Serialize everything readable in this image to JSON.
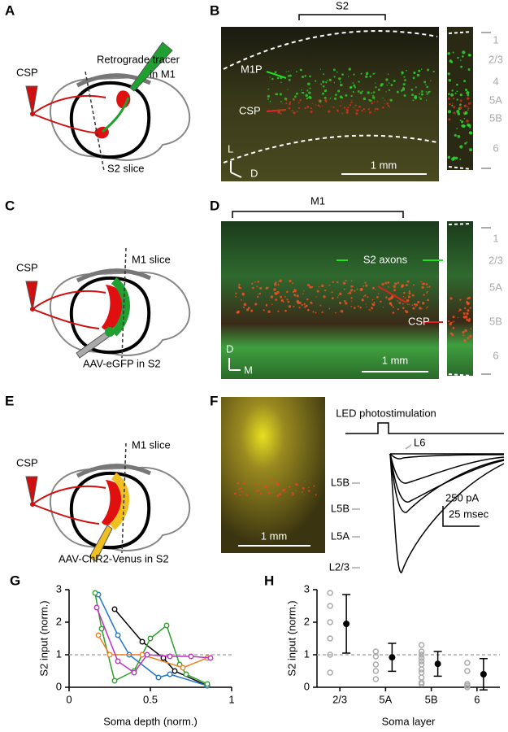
{
  "panels": {
    "A": {
      "letter": "A",
      "csp": "CSP",
      "tracer": [
        "Retrograde tracer",
        "in M1"
      ],
      "slice": "S2 slice"
    },
    "B": {
      "letter": "B",
      "region": "S2",
      "m1p": "M1P",
      "csp": "CSP",
      "axes": [
        "L",
        "D"
      ],
      "scale": "1 mm",
      "layers": [
        "1",
        "2/3",
        "4",
        "5A",
        "5B",
        "6"
      ]
    },
    "C": {
      "letter": "C",
      "slice": "M1 slice",
      "csp": "CSP",
      "injection": "AAV-eGFP in S2"
    },
    "D": {
      "letter": "D",
      "region": "M1",
      "axons": "S2 axons",
      "csp": "CSP",
      "axes": [
        "D",
        "M"
      ],
      "scale": "1 mm",
      "layers": [
        "1",
        "2/3",
        "5A",
        "5B",
        "6"
      ]
    },
    "E": {
      "letter": "E",
      "slice": "M1 slice",
      "csp": "CSP",
      "injection": "AAV-ChR2-Venus in S2"
    },
    "F": {
      "letter": "F",
      "scale": "1 mm",
      "stimulus": "LED photostimulation",
      "traces": [
        "L6",
        "L5B",
        "L5B",
        "L5A",
        "L2/3"
      ],
      "scalebar": [
        "250 pA",
        "25 msec"
      ]
    }
  },
  "chart_data": [
    {
      "panel": "G",
      "type": "line",
      "xlabel": "Soma depth (norm.)",
      "ylabel": "S2 input (norm.)",
      "xlim": [
        0,
        1
      ],
      "ylim": [
        0,
        3
      ],
      "xticks": [
        0,
        0.5,
        1
      ],
      "yticks": [
        0,
        1,
        2,
        3
      ],
      "reference_line": 1,
      "series": [
        {
          "color": "#000000",
          "x": [
            0.28,
            0.45,
            0.58,
            0.65,
            0.85
          ],
          "values": [
            2.4,
            1.4,
            0.9,
            0.5,
            0.05
          ]
        },
        {
          "color": "#1f77d0",
          "x": [
            0.18,
            0.3,
            0.37,
            0.55,
            0.62,
            0.85
          ],
          "values": [
            2.85,
            1.6,
            1.0,
            0.3,
            0.4,
            0.05
          ]
        },
        {
          "color": "#2ca02c",
          "x": [
            0.16,
            0.2,
            0.28,
            0.4,
            0.5,
            0.6,
            0.68,
            0.72,
            0.85
          ],
          "values": [
            2.9,
            1.8,
            0.2,
            0.5,
            1.5,
            1.9,
            0.7,
            0.4,
            0.1
          ]
        },
        {
          "color": "#f08020",
          "x": [
            0.18,
            0.25,
            0.45,
            0.7,
            0.85
          ],
          "values": [
            1.6,
            1.0,
            1.0,
            0.6,
            0.9
          ]
        },
        {
          "color": "#c030c0",
          "x": [
            0.17,
            0.3,
            0.4,
            0.48,
            0.62,
            0.75,
            0.87
          ],
          "values": [
            2.45,
            0.8,
            0.45,
            1.0,
            0.95,
            0.95,
            0.9
          ]
        }
      ]
    },
    {
      "panel": "H",
      "type": "dot",
      "xlabel": "Soma layer",
      "ylabel": "S2 input (norm.)",
      "categories": [
        "2/3",
        "5A",
        "5B",
        "6"
      ],
      "ylim": [
        0,
        3
      ],
      "yticks": [
        0,
        1,
        2,
        3
      ],
      "reference_line": 1,
      "points": [
        [
          2.9,
          2.5,
          2.0,
          1.5,
          1.0,
          0.45
        ],
        [
          1.1,
          0.95,
          0.7,
          0.5,
          0.25
        ],
        [
          1.3,
          1.1,
          1.0,
          0.9,
          0.8,
          0.7,
          0.55,
          0.45,
          0.3,
          0.15,
          0.1
        ],
        [
          0.75,
          0.5,
          0.1,
          0.05,
          0.0
        ]
      ],
      "point_color": "#aaaaaa",
      "means": [
        1.95,
        0.92,
        0.72,
        0.4
      ],
      "errors": [
        0.9,
        0.43,
        0.38,
        0.48
      ],
      "color": "#000000"
    }
  ]
}
